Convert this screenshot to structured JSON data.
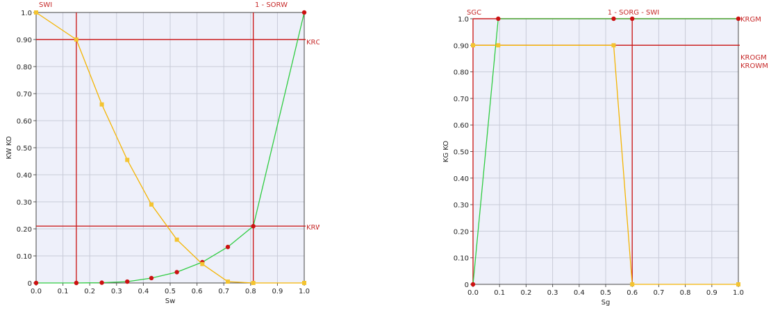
{
  "chart_data": [
    {
      "type": "line",
      "xlabel": "Sw",
      "ylabel": "KW KO",
      "xlim": [
        0,
        1
      ],
      "ylim": [
        0,
        1
      ],
      "grid": true,
      "x_ticks": [
        "0.0",
        "0.1",
        "0.2",
        "0.3",
        "0.4",
        "0.5",
        "0.6",
        "0.7",
        "0.8",
        "0.9",
        "1.0"
      ],
      "y_ticks": [
        "0",
        "0.10",
        "0.20",
        "0.30",
        "0.40",
        "0.50",
        "0.60",
        "0.70",
        "0.80",
        "0.90",
        "1.0"
      ],
      "reference_lines": [
        {
          "orientation": "vertical",
          "value": 0.15,
          "label": "SWI"
        },
        {
          "orientation": "vertical",
          "value": 0.81,
          "label": "1 - SORW"
        },
        {
          "orientation": "horizontal",
          "value": 0.9,
          "label": "KROWM"
        },
        {
          "orientation": "horizontal",
          "value": 0.21,
          "label": "KRWM"
        }
      ],
      "series": [
        {
          "color": "#2ecc40",
          "marker": "circle",
          "marker_color": "#cc1111",
          "x": [
            0,
            0.15,
            0.245,
            0.34,
            0.43,
            0.525,
            0.62,
            0.715,
            0.81,
            1.0
          ],
          "y": [
            0,
            0,
            0.001,
            0.005,
            0.018,
            0.04,
            0.077,
            0.133,
            0.21,
            1.0
          ]
        },
        {
          "color": "#f4b400",
          "marker": "square",
          "marker_color": "#f4c430",
          "x": [
            0,
            0.15,
            0.245,
            0.34,
            0.43,
            0.525,
            0.62,
            0.715,
            0.81,
            1.0
          ],
          "y": [
            1.0,
            0.9,
            0.66,
            0.455,
            0.29,
            0.16,
            0.07,
            0.005,
            0,
            0
          ]
        }
      ]
    },
    {
      "type": "line",
      "xlabel": "Sg",
      "ylabel": "KG KO",
      "xlim": [
        0,
        1
      ],
      "ylim": [
        0,
        1
      ],
      "grid": true,
      "x_ticks": [
        "0.0",
        "0.1",
        "0.2",
        "0.3",
        "0.4",
        "0.5",
        "0.6",
        "0.7",
        "0.8",
        "0.9",
        "1.0"
      ],
      "y_ticks": [
        "0",
        "0.10",
        "0.20",
        "0.30",
        "0.40",
        "0.50",
        "0.60",
        "0.70",
        "0.80",
        "0.90",
        "1.0"
      ],
      "reference_lines": [
        {
          "orientation": "vertical",
          "value": 0,
          "label": "SGC"
        },
        {
          "orientation": "vertical",
          "value": 0.6,
          "label": "1 - SORG - SWI"
        },
        {
          "orientation": "horizontal",
          "value": 1.0,
          "label": "KRGM"
        },
        {
          "orientation": "horizontal",
          "value": 0.9,
          "label": "KROGM"
        },
        {
          "orientation": "horizontal",
          "value": 0.9,
          "label": "KROWM"
        }
      ],
      "series": [
        {
          "color": "#2ecc40",
          "marker": "circle",
          "marker_color": "#cc1111",
          "x": [
            0,
            0.095,
            0.53,
            0.6,
            1.0
          ],
          "y": [
            0,
            1.0,
            1.0,
            1.0,
            1.0
          ]
        },
        {
          "color": "#f4b400",
          "marker": "square",
          "marker_color": "#f4c430",
          "x": [
            0,
            0.095,
            0.53,
            0.6,
            1.0
          ],
          "y": [
            0.9,
            0.9,
            0.9,
            0,
            0
          ]
        }
      ]
    }
  ]
}
